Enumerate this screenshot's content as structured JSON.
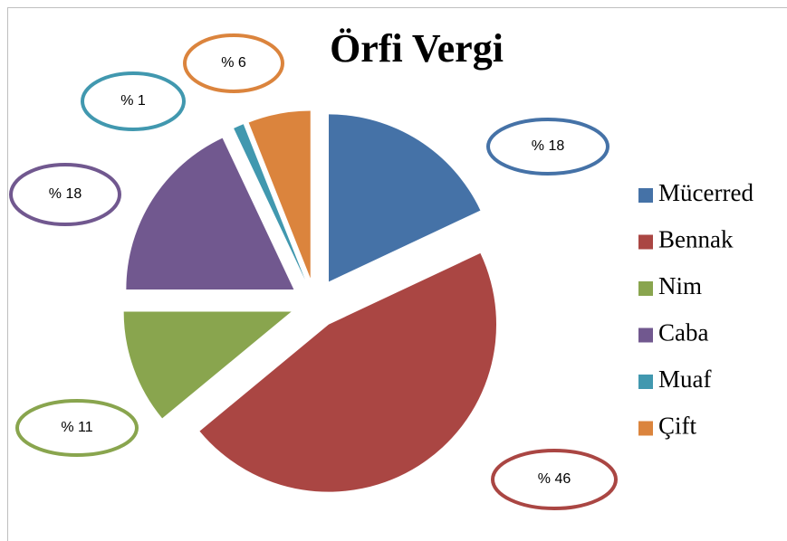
{
  "chart_data": {
    "type": "pie",
    "title": "Örfi Vergi",
    "categories": [
      "Mücerred",
      "Bennak",
      "Nim",
      "Caba",
      "Muaf",
      "Çift"
    ],
    "values": [
      18,
      46,
      11,
      18,
      1,
      6
    ],
    "value_labels": [
      "% 18",
      "% 46",
      "% 11",
      "% 18",
      "% 1",
      "% 6"
    ],
    "colors": [
      "#4572a7",
      "#aa4643",
      "#89a54e",
      "#71588f",
      "#4198af",
      "#db843d"
    ],
    "legend": "right"
  }
}
